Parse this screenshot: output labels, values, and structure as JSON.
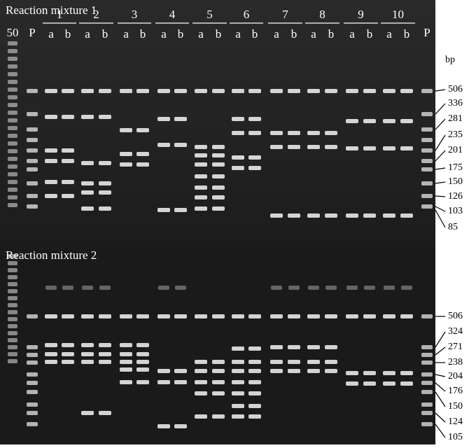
{
  "panels": [
    {
      "title": "Reaction mixture 1",
      "size_markers": [
        506,
        336,
        281,
        235,
        201,
        175,
        150,
        126,
        103,
        85
      ]
    },
    {
      "title": "Reaction mixture 2",
      "size_markers": [
        506,
        324,
        271,
        238,
        204,
        176,
        150,
        124,
        105
      ]
    }
  ],
  "lanes": {
    "ladder": "50",
    "positive": "P",
    "groups": [
      {
        "label": "1",
        "sublanes": [
          "a",
          "b"
        ]
      },
      {
        "label": "2",
        "sublanes": [
          "a",
          "b"
        ]
      },
      {
        "label": "3",
        "sublanes": [
          "a",
          "b"
        ]
      },
      {
        "label": "4",
        "sublanes": [
          "a",
          "b"
        ]
      },
      {
        "label": "5",
        "sublanes": [
          "a",
          "b"
        ]
      },
      {
        "label": "6",
        "sublanes": [
          "a",
          "b"
        ]
      },
      {
        "label": "7",
        "sublanes": [
          "a",
          "b"
        ]
      },
      {
        "label": "8",
        "sublanes": [
          "a",
          "b"
        ]
      },
      {
        "label": "9",
        "sublanes": [
          "a",
          "b"
        ]
      },
      {
        "label": "10",
        "sublanes": [
          "a",
          "b"
        ]
      }
    ],
    "positive_end": "P"
  },
  "unit": "bp"
}
